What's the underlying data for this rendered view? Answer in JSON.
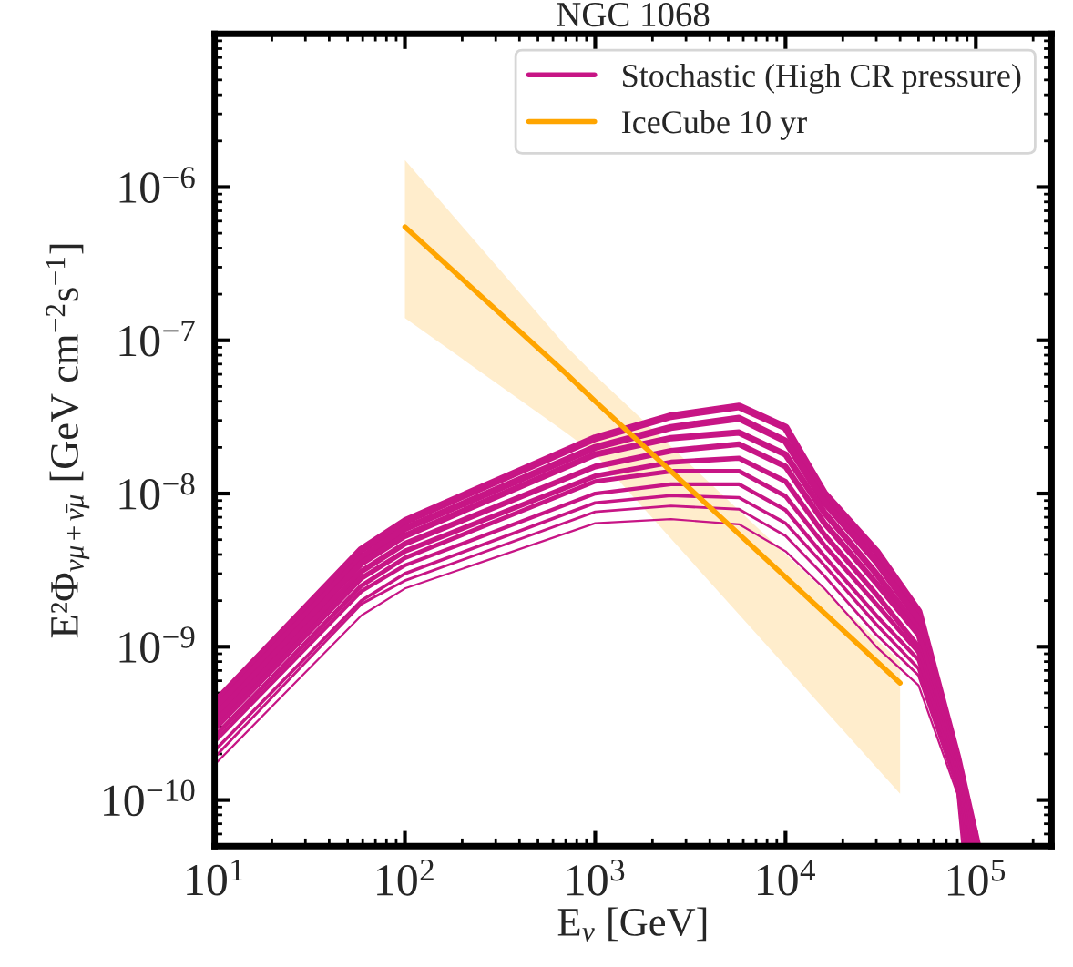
{
  "chart_data": {
    "type": "line",
    "title": "NGC 1068",
    "xlabel": "E$_{ν}$ [GeV]",
    "ylabel": "E²Φ$_{νμ+ν̄μ}$ [GeV cm$^{−2}$s$^{−1}$]",
    "log": "xy",
    "xlim": [
      10,
      250000
    ],
    "ylim": [
      5e-11,
      1e-05
    ],
    "xticks": [
      {
        "value": 10,
        "label": "10$^{1}$"
      },
      {
        "value": 100,
        "label": "10$^{2}$"
      },
      {
        "value": 1000,
        "label": "10$^{3}$"
      },
      {
        "value": 10000,
        "label": "10$^{4}$"
      },
      {
        "value": 100000,
        "label": "10$^{5}$"
      }
    ],
    "yticks": [
      {
        "value": 1e-10,
        "label": "10$^{−10}$"
      },
      {
        "value": 1e-09,
        "label": "10$^{−9}$"
      },
      {
        "value": 1e-08,
        "label": "10$^{−8}$"
      },
      {
        "value": 1e-07,
        "label": "10$^{−7}$"
      },
      {
        "value": 1e-06,
        "label": "10$^{−6}$"
      }
    ],
    "grid": false,
    "legend": "top right",
    "series": [
      {
        "name": "Stochastic (High CR pressure)",
        "color": "#c71585",
        "x": [
          10,
          59,
          100,
          1000,
          2500,
          5700,
          10000,
          16000,
          30000,
          50000,
          80000,
          102000
        ],
        "values": [
          4.3e-10,
          4.3e-09,
          6.6e-09,
          2.3e-08,
          3.2e-08,
          3.7e-08,
          2.7e-08,
          1e-08,
          4.2e-09,
          1.7e-09,
          1.9e-10,
          5e-11
        ]
      },
      {
        "name": "IceCube 10 yr",
        "color": "#ffa500",
        "x": [
          100,
          700,
          1000,
          40000
        ],
        "values": [
          5.5e-07,
          6.1e-08,
          4e-08,
          5.8e-10
        ],
        "lower": [
          1.4e-07,
          2.5e-08,
          1.8e-08,
          1.1e-10
        ],
        "upper": [
          1.5e-06,
          9.2e-08,
          5.9e-08,
          8e-10
        ]
      },
      {
        "color": "#c71585",
        "x": [
          10,
          59,
          100,
          1000,
          2500,
          5700,
          10000,
          16000,
          30000,
          50000,
          80000,
          100000
        ],
        "values": [
          3.9e-10,
          3.8e-09,
          5.9e-09,
          2e-08,
          2.7e-08,
          3.1e-08,
          2.2e-08,
          8.8e-09,
          3.6e-09,
          1.5e-09,
          1.8e-10,
          5e-11
        ]
      },
      {
        "color": "#c71585",
        "x": [
          10,
          59,
          100,
          1000,
          2500,
          5700,
          10000,
          16000,
          30000,
          50000,
          80000,
          98000
        ],
        "values": [
          3.5e-10,
          3.5e-09,
          5.3e-09,
          1.8e-08,
          2.3e-08,
          2.5e-08,
          1.8e-08,
          7.5e-09,
          3e-09,
          1.3e-09,
          1.7e-10,
          5e-11
        ]
      },
      {
        "color": "#c71585",
        "x": [
          10,
          59,
          100,
          1000,
          2500,
          5700,
          10000,
          16000,
          30000,
          50000,
          80000,
          96000
        ],
        "values": [
          3.2e-10,
          3.1e-09,
          4.7e-09,
          1.5e-08,
          1.9e-08,
          2.1e-08,
          1.5e-08,
          6.4e-09,
          2.6e-09,
          1.2e-09,
          1.6e-10,
          5e-11
        ]
      },
      {
        "color": "#c71585",
        "x": [
          10,
          59,
          100,
          1000,
          2500,
          5700,
          10000,
          16000,
          30000,
          50000,
          80000,
          94000
        ],
        "values": [
          2.9e-10,
          2.8e-09,
          4.2e-09,
          1.3e-08,
          1.6e-08,
          1.7e-08,
          1.2e-08,
          5.4e-09,
          2.2e-09,
          1e-09,
          1.5e-10,
          5e-11
        ]
      },
      {
        "color": "#c71585",
        "x": [
          10,
          59,
          100,
          1000,
          2500,
          5700,
          10000,
          16000,
          30000,
          50000,
          80000,
          92000
        ],
        "values": [
          2.6e-10,
          2.5e-09,
          3.8e-09,
          1.2e-08,
          1.4e-08,
          1.4e-08,
          9.6e-09,
          4.6e-09,
          1.9e-09,
          9.2e-10,
          1.4e-10,
          5e-11
        ]
      },
      {
        "color": "#c71585",
        "x": [
          10,
          59,
          100,
          1000,
          2500,
          5700,
          10000,
          16000,
          30000,
          50000,
          80000,
          91000
        ],
        "values": [
          2.4e-10,
          2.3e-09,
          3.4e-09,
          1e-08,
          1.15e-08,
          1.15e-08,
          7.8e-09,
          3.9e-09,
          1.6e-09,
          8.2e-10,
          1.3e-10,
          5e-11
        ]
      },
      {
        "color": "#c71585",
        "x": [
          10,
          59,
          100,
          1000,
          2500,
          5700,
          10000,
          16000,
          30000,
          50000,
          80000,
          89000
        ],
        "values": [
          2.1e-10,
          2e-09,
          3e-09,
          8.7e-09,
          9.7e-09,
          9.4e-09,
          6.4e-09,
          3.4e-09,
          1.4e-09,
          7.2e-10,
          1.2e-10,
          5e-11
        ]
      },
      {
        "color": "#c71585",
        "x": [
          10,
          59,
          100,
          1000,
          2500,
          5700,
          10000,
          16000,
          30000,
          50000,
          80000,
          87000
        ],
        "values": [
          1.9e-10,
          1.9e-09,
          2.7e-09,
          7.6e-09,
          8.3e-09,
          7.9e-09,
          5.3e-09,
          2.9e-09,
          1.2e-09,
          6.5e-10,
          1.2e-10,
          5e-11
        ]
      },
      {
        "color": "#c71585",
        "x": [
          10,
          59,
          100,
          1000,
          2500,
          5700,
          10000,
          16000,
          30000,
          50000,
          80000,
          85000
        ],
        "values": [
          1.7e-10,
          1.6e-09,
          2.4e-09,
          6.4e-09,
          6.8e-09,
          6.3e-09,
          4.2e-09,
          2.4e-09,
          1e-09,
          5.6e-10,
          1.1e-10,
          5e-11
        ]
      }
    ]
  }
}
